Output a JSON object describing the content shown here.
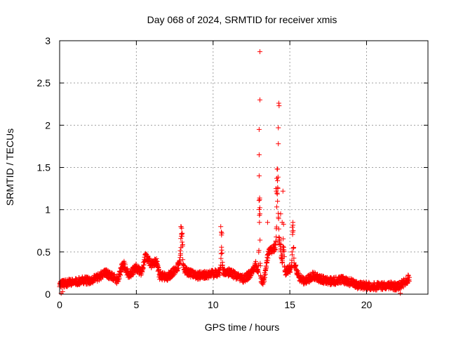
{
  "chart_data": {
    "type": "scatter",
    "title": "Day 068 of 2024, SRMTID for receiver xmis",
    "xlabel": "GPS time / hours",
    "ylabel": "SRMTID / TECUs",
    "xlim": [
      0,
      24
    ],
    "ylim": [
      0,
      3
    ],
    "x_ticks": [
      0,
      5,
      10,
      15,
      20
    ],
    "x_tick_labels": [
      "0",
      "5",
      "10",
      "15",
      "20"
    ],
    "y_ticks": [
      0,
      0.5,
      1,
      1.5,
      2,
      2.5,
      3
    ],
    "y_tick_labels": [
      "0",
      "0.5",
      "1",
      "1.5",
      "2",
      "2.5",
      "3"
    ],
    "grid": true,
    "marker": "+",
    "marker_color": "#ff0000",
    "baseline": [
      [
        0.0,
        0.12
      ],
      [
        0.5,
        0.13
      ],
      [
        1.0,
        0.15
      ],
      [
        1.5,
        0.16
      ],
      [
        2.0,
        0.16
      ],
      [
        2.5,
        0.2
      ],
      [
        3.0,
        0.25
      ],
      [
        3.5,
        0.2
      ],
      [
        3.8,
        0.15
      ],
      [
        4.0,
        0.3
      ],
      [
        4.2,
        0.35
      ],
      [
        4.5,
        0.22
      ],
      [
        5.0,
        0.32
      ],
      [
        5.3,
        0.25
      ],
      [
        5.6,
        0.45
      ],
      [
        6.0,
        0.35
      ],
      [
        6.3,
        0.4
      ],
      [
        6.5,
        0.22
      ],
      [
        7.0,
        0.2
      ],
      [
        7.5,
        0.28
      ],
      [
        7.8,
        0.35
      ],
      [
        8.0,
        0.3
      ],
      [
        8.5,
        0.25
      ],
      [
        9.0,
        0.22
      ],
      [
        9.5,
        0.23
      ],
      [
        10.0,
        0.24
      ],
      [
        10.5,
        0.25
      ],
      [
        11.0,
        0.26
      ],
      [
        11.5,
        0.22
      ],
      [
        12.0,
        0.18
      ],
      [
        12.5,
        0.25
      ],
      [
        12.8,
        0.35
      ],
      [
        13.0,
        0.2
      ],
      [
        13.3,
        0.15
      ],
      [
        13.6,
        0.5
      ],
      [
        14.0,
        0.55
      ],
      [
        14.3,
        0.65
      ],
      [
        14.6,
        0.25
      ],
      [
        15.0,
        0.3
      ],
      [
        15.3,
        0.35
      ],
      [
        15.6,
        0.2
      ],
      [
        16.0,
        0.15
      ],
      [
        16.5,
        0.22
      ],
      [
        17.0,
        0.18
      ],
      [
        17.5,
        0.15
      ],
      [
        18.0,
        0.16
      ],
      [
        18.5,
        0.17
      ],
      [
        19.0,
        0.14
      ],
      [
        19.5,
        0.1
      ],
      [
        20.0,
        0.1
      ],
      [
        20.5,
        0.09
      ],
      [
        21.0,
        0.1
      ],
      [
        21.5,
        0.1
      ],
      [
        22.0,
        0.09
      ],
      [
        22.5,
        0.14
      ],
      [
        22.8,
        0.2
      ]
    ],
    "spikes": [
      {
        "x": 7.95,
        "peak": 0.82,
        "width": 0.08
      },
      {
        "x": 10.55,
        "peak": 0.8,
        "width": 0.05
      },
      {
        "x": 13.02,
        "peak": 1.4,
        "width": 0.04
      },
      {
        "x": 14.2,
        "peak": 1.3,
        "width": 0.06
      },
      {
        "x": 14.6,
        "peak": 0.8,
        "width": 0.05
      },
      {
        "x": 15.2,
        "peak": 0.85,
        "width": 0.05
      }
    ],
    "outliers": [
      [
        13.05,
        2.87
      ],
      [
        13.05,
        2.3
      ],
      [
        13.0,
        1.95
      ],
      [
        13.0,
        1.65
      ],
      [
        13.0,
        1.4
      ],
      [
        13.03,
        1.12
      ],
      [
        13.05,
        0.95
      ],
      [
        13.02,
        0.85
      ],
      [
        14.28,
        2.26
      ],
      [
        14.3,
        2.23
      ],
      [
        14.25,
        1.97
      ],
      [
        14.25,
        1.78
      ],
      [
        14.2,
        1.48
      ],
      [
        14.15,
        1.37
      ],
      [
        14.1,
        1.25
      ],
      [
        14.12,
        1.22
      ],
      [
        14.55,
        1.22
      ],
      [
        14.2,
        1.1
      ],
      [
        14.4,
        0.95
      ],
      [
        14.5,
        0.85
      ],
      [
        13.55,
        0.85
      ],
      [
        15.2,
        0.85
      ],
      [
        10.5,
        0.8
      ],
      [
        10.55,
        0.7
      ],
      [
        7.9,
        0.8
      ],
      [
        7.95,
        0.78
      ],
      [
        22.2,
        0.01
      ],
      [
        0.1,
        0.01
      ],
      [
        0.2,
        0.03
      ]
    ]
  }
}
